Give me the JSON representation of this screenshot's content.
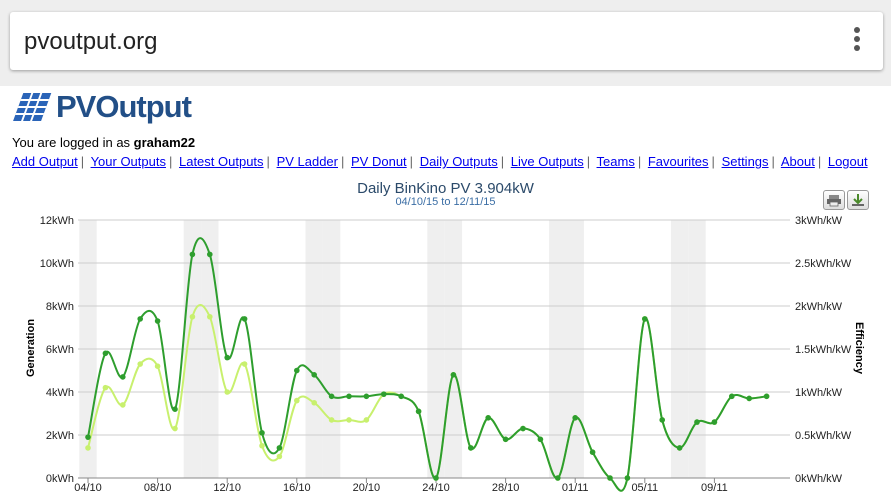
{
  "browser": {
    "url": "pvoutput.org"
  },
  "site": {
    "logo_text": "PVOutput"
  },
  "login": {
    "prefix": "You are logged in as ",
    "user": "graham22"
  },
  "nav": [
    "Add Output",
    "Your Outputs",
    "Latest Outputs",
    "PV Ladder",
    "PV Donut",
    "Daily Outputs",
    "Live Outputs",
    "Teams",
    "Favourites",
    "Settings",
    "About",
    "Logout"
  ],
  "chart_data": {
    "type": "line",
    "title": "Daily BinKino PV 3.904kW",
    "subtitle": "04/10/15 to 12/11/15",
    "ylabel": "Generation",
    "y2label": "Efficiency",
    "ylim": [
      0,
      12
    ],
    "y_ticks": [
      "0kWh",
      "2kWh",
      "4kWh",
      "6kWh",
      "8kWh",
      "10kWh",
      "12kWh"
    ],
    "y2_ticks": [
      "0kWh/kW",
      "0.5kWh/kW",
      "1kWh/kW",
      "1.5kWh/kW",
      "2kWh/kW",
      "2.5kWh/kW",
      "3kWh/kW"
    ],
    "x_ticks": [
      "04/10",
      "08/10",
      "12/10",
      "16/10",
      "20/10",
      "24/10",
      "28/10",
      "01/11",
      "05/11",
      "09/11"
    ],
    "x_ticks_day": [
      0,
      4,
      8,
      12,
      16,
      20,
      24,
      28,
      32,
      36
    ],
    "weekend_days": [
      0,
      6,
      7,
      13,
      14,
      20,
      21,
      27,
      28,
      34,
      35
    ],
    "series": [
      {
        "color": "#2e9e2e",
        "values": [
          1.9,
          5.8,
          4.7,
          7.4,
          7.3,
          3.2,
          10.4,
          10.4,
          5.6,
          7.4,
          2.1,
          1.4,
          5.0,
          4.8,
          3.8,
          3.8,
          3.8,
          3.9,
          3.8,
          3.1,
          0.0,
          4.8,
          1.4,
          2.8,
          1.8,
          2.3,
          1.8,
          0.0,
          2.8,
          1.2,
          0.0,
          0.0,
          7.4,
          2.7,
          1.4,
          2.6,
          2.6,
          3.8,
          3.7,
          3.8
        ]
      },
      {
        "color": "#c8f06e",
        "values": [
          1.4,
          4.2,
          3.4,
          5.3,
          5.2,
          2.3,
          7.5,
          7.5,
          4.0,
          5.3,
          1.5,
          1.0,
          3.6,
          3.5,
          2.7,
          2.7,
          2.7,
          3.9,
          3.8,
          3.1,
          0.0,
          4.8,
          1.4,
          2.8,
          1.8,
          2.3,
          1.8,
          0.0,
          2.8,
          1.2,
          0.0,
          0.0,
          7.4,
          2.7,
          1.4,
          2.6,
          2.6,
          3.8,
          3.7,
          3.8
        ]
      }
    ]
  }
}
